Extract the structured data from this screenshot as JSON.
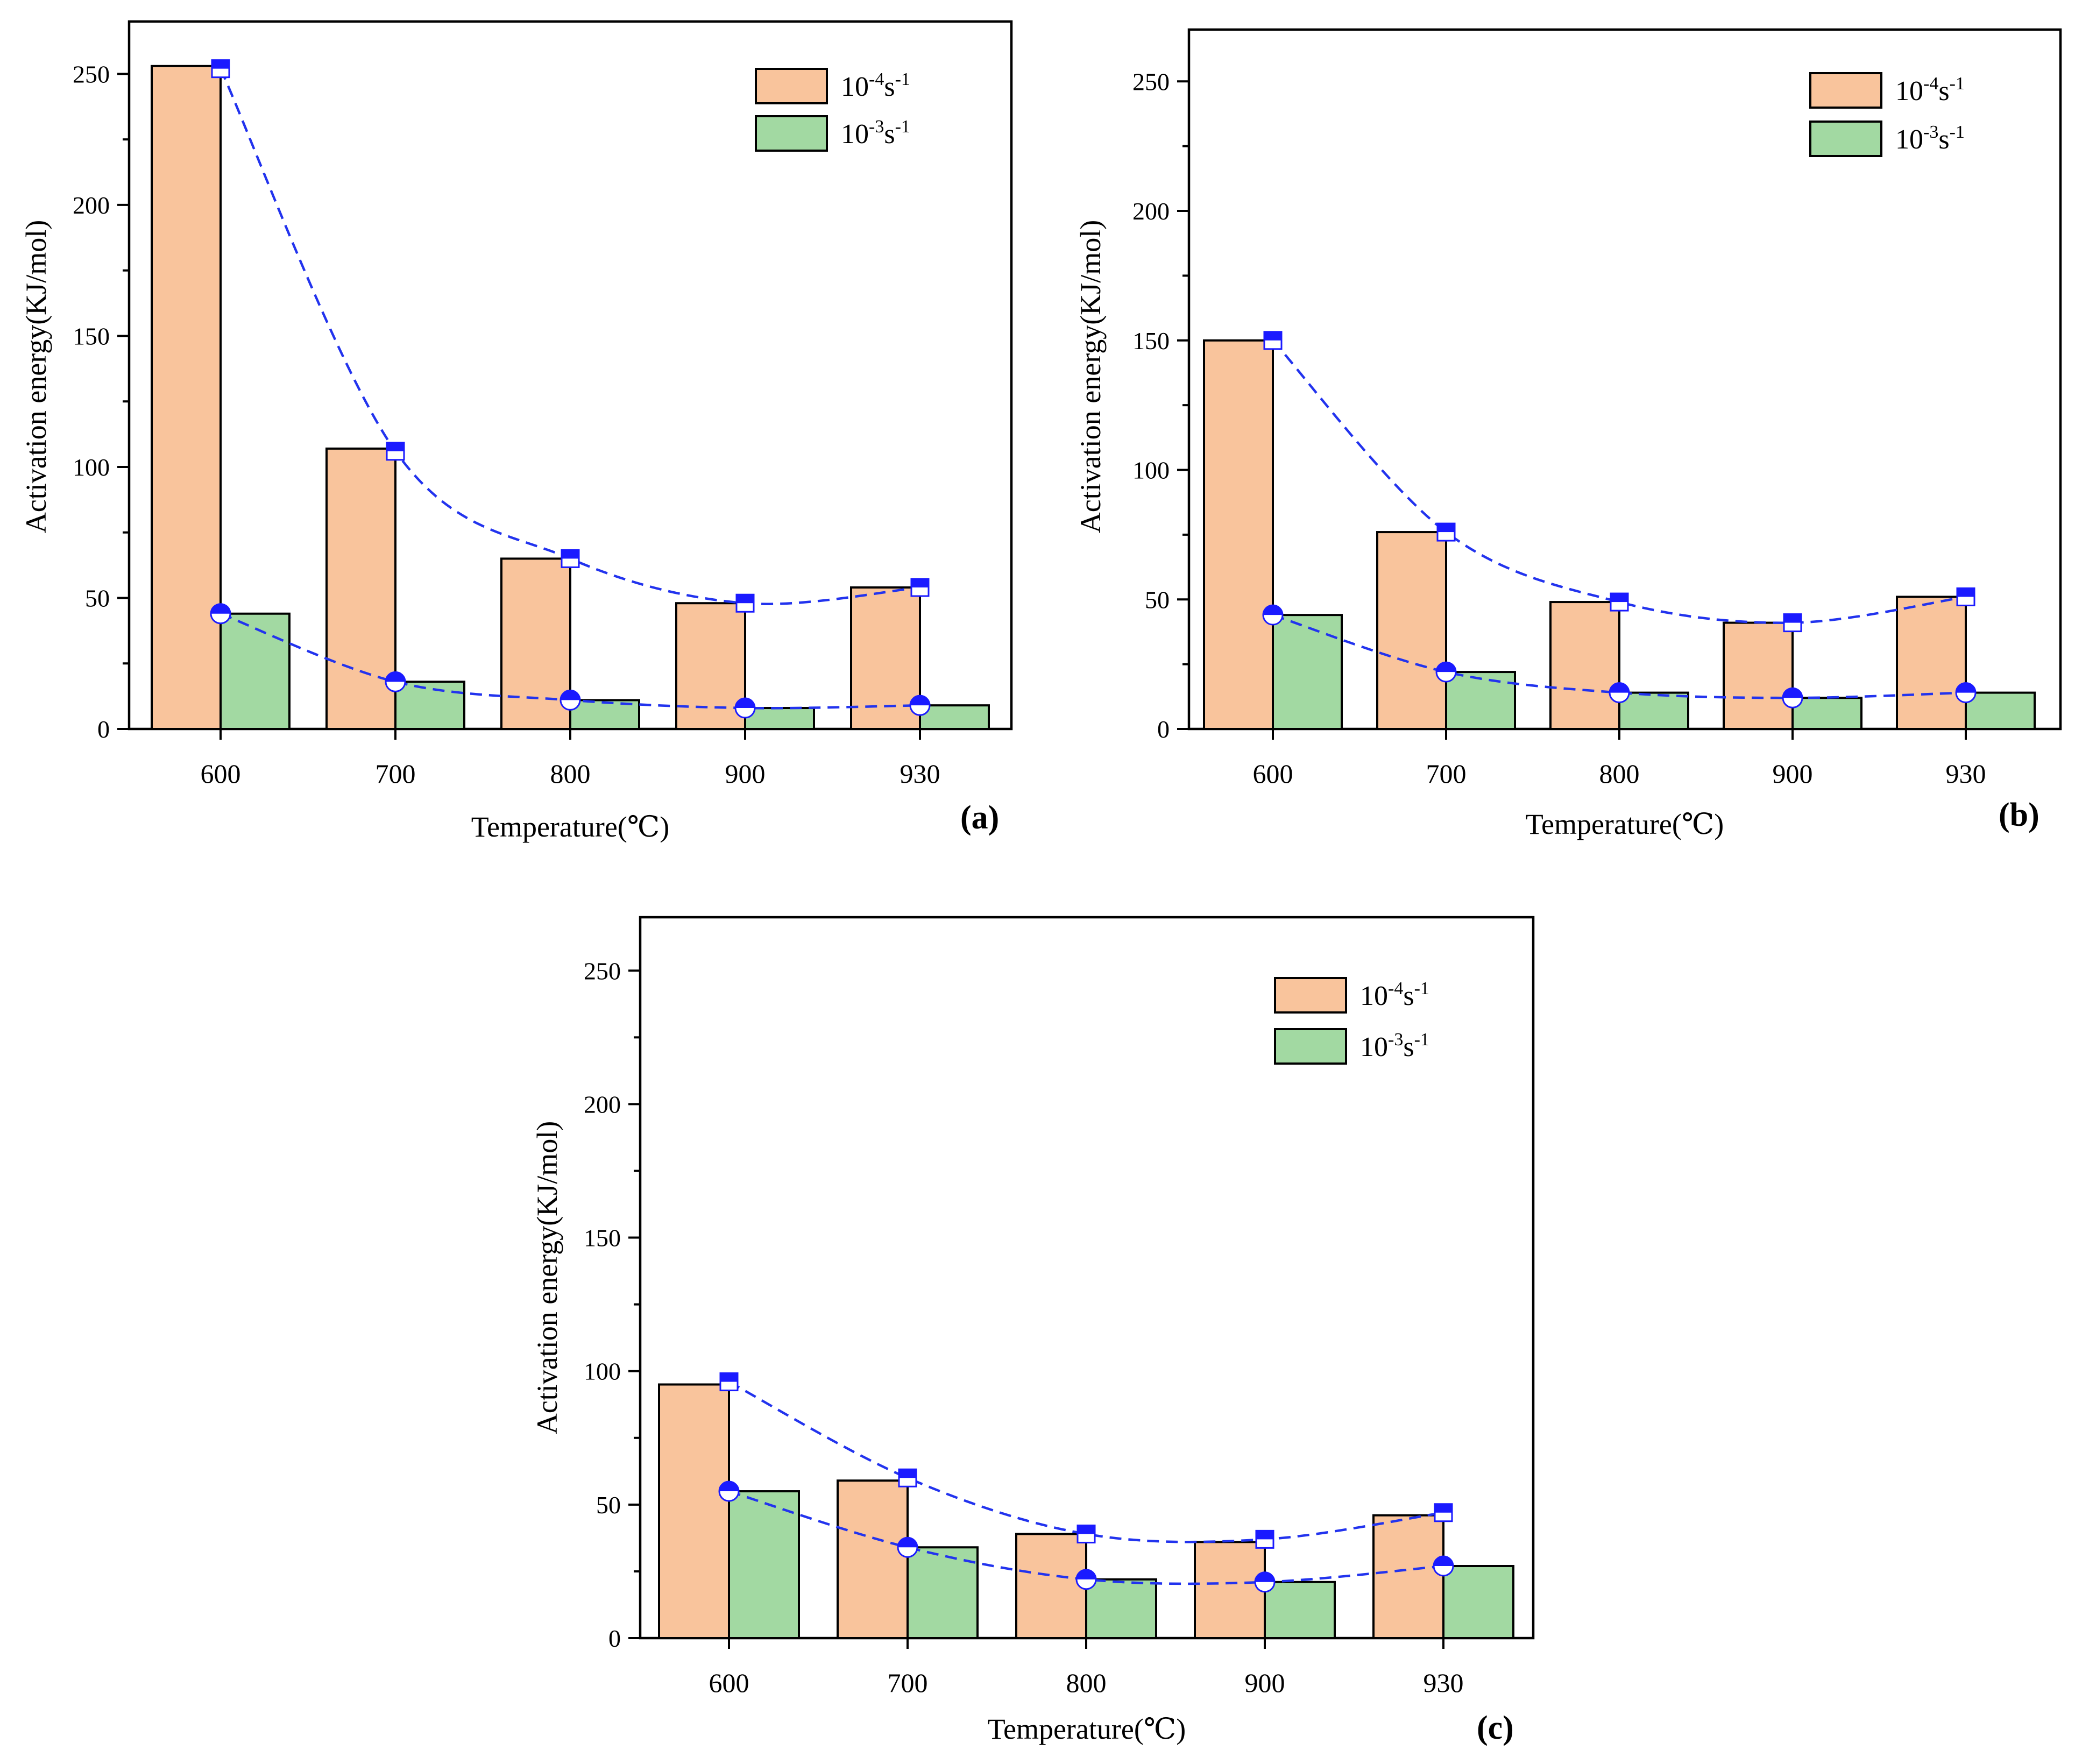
{
  "chart_data": [
    {
      "panel": "(a)",
      "type": "bar",
      "categories": [
        "600",
        "700",
        "800",
        "900",
        "930"
      ],
      "series": [
        {
          "name": "10-4s-1",
          "label_base": "10",
          "label_exp": "-4",
          "label_unit": "s",
          "label_unit_exp": "-1",
          "color": "#f9c49c",
          "values": [
            253,
            107,
            65,
            48,
            54
          ],
          "trend_markers": [
            252,
            106,
            65,
            48,
            54
          ],
          "marker": "half-filled-square"
        },
        {
          "name": "10-3s-1",
          "label_base": "10",
          "label_exp": "-3",
          "label_unit": "s",
          "label_unit_exp": "-1",
          "color": "#a2d9a2",
          "values": [
            44,
            18,
            11,
            8,
            9
          ],
          "trend_markers": [
            44,
            18,
            11,
            8,
            9
          ],
          "marker": "half-filled-circle"
        }
      ],
      "xlabel": "Temperature(℃)",
      "ylabel": "Activation energy(KJ/mol)",
      "ylim": [
        0,
        270
      ],
      "yticks": [
        0,
        50,
        100,
        150,
        200,
        250
      ],
      "legend_position": "top-right",
      "trend_line_color": "#2233ee"
    },
    {
      "panel": "(b)",
      "type": "bar",
      "categories": [
        "600",
        "700",
        "800",
        "900",
        "930"
      ],
      "series": [
        {
          "name": "10-4s-1",
          "label_base": "10",
          "label_exp": "-4",
          "label_unit": "s",
          "label_unit_exp": "-1",
          "color": "#f9c49c",
          "values": [
            150,
            76,
            49,
            41,
            51
          ],
          "trend_markers": [
            150,
            76,
            49,
            41,
            51
          ],
          "marker": "half-filled-square"
        },
        {
          "name": "10-3s-1",
          "label_base": "10",
          "label_exp": "-3",
          "label_unit": "s",
          "label_unit_exp": "-1",
          "color": "#a2d9a2",
          "values": [
            44,
            22,
            14,
            12,
            14
          ],
          "trend_markers": [
            44,
            22,
            14,
            12,
            14
          ],
          "marker": "half-filled-circle"
        }
      ],
      "xlabel": "Temperature(℃)",
      "ylabel": "Activation energy(KJ/mol)",
      "ylim": [
        0,
        270
      ],
      "yticks": [
        0,
        50,
        100,
        150,
        200,
        250
      ],
      "legend_position": "top-right",
      "trend_line_color": "#2233ee"
    },
    {
      "panel": "(c)",
      "type": "bar",
      "categories": [
        "600",
        "700",
        "800",
        "900",
        "930"
      ],
      "series": [
        {
          "name": "10-4s-1",
          "label_base": "10",
          "label_exp": "-4",
          "label_unit": "s",
          "label_unit_exp": "-1",
          "color": "#f9c49c",
          "values": [
            95,
            59,
            39,
            36,
            46
          ],
          "trend_markers": [
            96,
            60,
            39,
            37,
            47
          ],
          "marker": "half-filled-square"
        },
        {
          "name": "10-3s-1",
          "label_base": "10",
          "label_exp": "-3",
          "label_unit": "s",
          "label_unit_exp": "-1",
          "color": "#a2d9a2",
          "values": [
            55,
            34,
            22,
            21,
            27
          ],
          "trend_markers": [
            55,
            34,
            22,
            21,
            27
          ],
          "marker": "half-filled-circle"
        }
      ],
      "xlabel": "Temperature(℃)",
      "ylabel": "Activation energy(KJ/mol)",
      "ylim": [
        0,
        270
      ],
      "yticks": [
        0,
        50,
        100,
        150,
        200,
        250
      ],
      "legend_position": "top-right",
      "trend_line_color": "#2233ee"
    }
  ]
}
